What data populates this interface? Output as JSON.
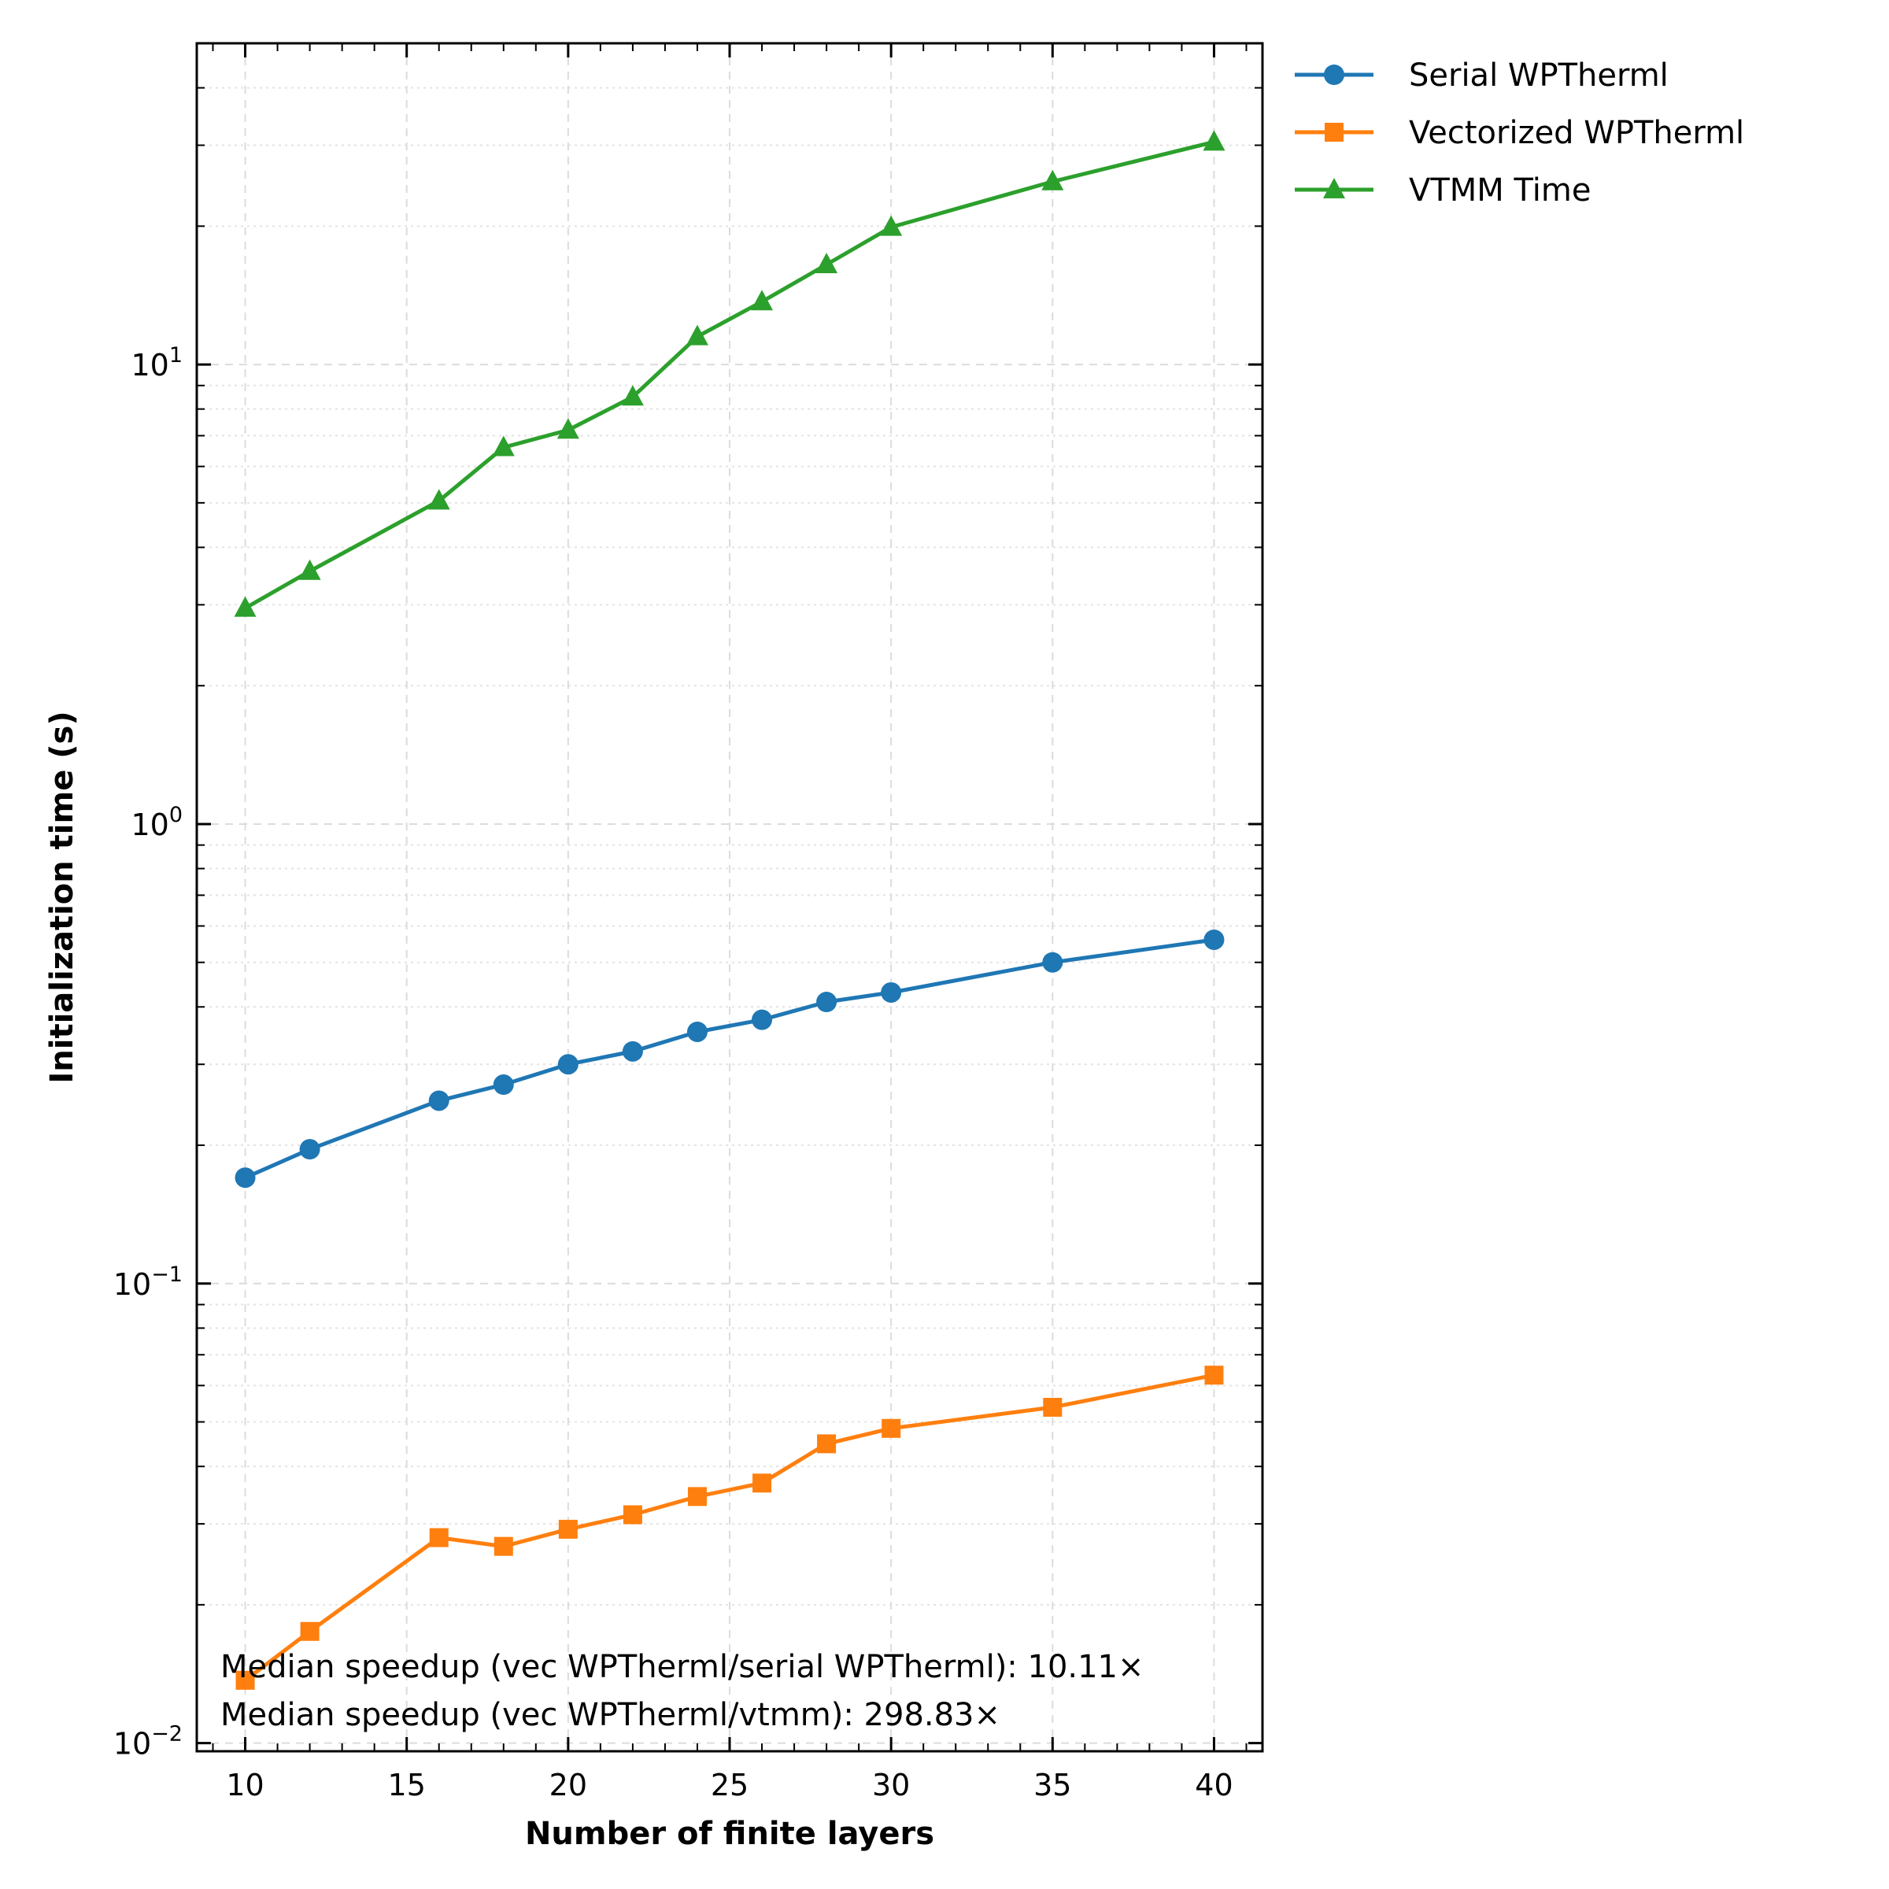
{
  "chart_data": {
    "type": "line",
    "xlabel": "Number of finite layers",
    "ylabel": "Initialization time (s)",
    "x": [
      10,
      12,
      16,
      18,
      20,
      22,
      24,
      26,
      28,
      30,
      35,
      40
    ],
    "xlim": [
      8.5,
      41.5
    ],
    "ylim": [
      0.0096,
      50
    ],
    "yscale": "log",
    "x_ticks": [
      10,
      15,
      20,
      25,
      30,
      35,
      40
    ],
    "y_ticks": [
      {
        "value": 0.01,
        "base": "10",
        "exp": "−2"
      },
      {
        "value": 0.1,
        "base": "10",
        "exp": "−1"
      },
      {
        "value": 1,
        "base": "10",
        "exp": "0"
      },
      {
        "value": 10,
        "base": "10",
        "exp": "1"
      }
    ],
    "grid": true,
    "legend_position": "outside-top-right",
    "series": [
      {
        "name": "Serial WPTherml",
        "color": "#1f77b4",
        "marker": "circle",
        "values": [
          0.17,
          0.196,
          0.25,
          0.271,
          0.3,
          0.32,
          0.353,
          0.375,
          0.41,
          0.43,
          0.5,
          0.56
        ]
      },
      {
        "name": "Vectorized WPTherml",
        "color": "#ff7f0e",
        "marker": "square",
        "values": [
          0.0137,
          0.0175,
          0.028,
          0.0268,
          0.0292,
          0.0314,
          0.0344,
          0.0368,
          0.0448,
          0.0484,
          0.0538,
          0.0632
        ]
      },
      {
        "name": "VTMM Time",
        "color": "#2ca02c",
        "marker": "triangle",
        "values": [
          2.95,
          3.55,
          5.05,
          6.6,
          7.2,
          8.5,
          11.5,
          13.7,
          16.5,
          19.9,
          25.0,
          30.5
        ]
      }
    ],
    "annotations": [
      "Median speedup (vec WPTherml/serial WPTherml): 10.11×",
      "Median speedup (vec WPTherml/vtmm): 298.83×"
    ]
  }
}
